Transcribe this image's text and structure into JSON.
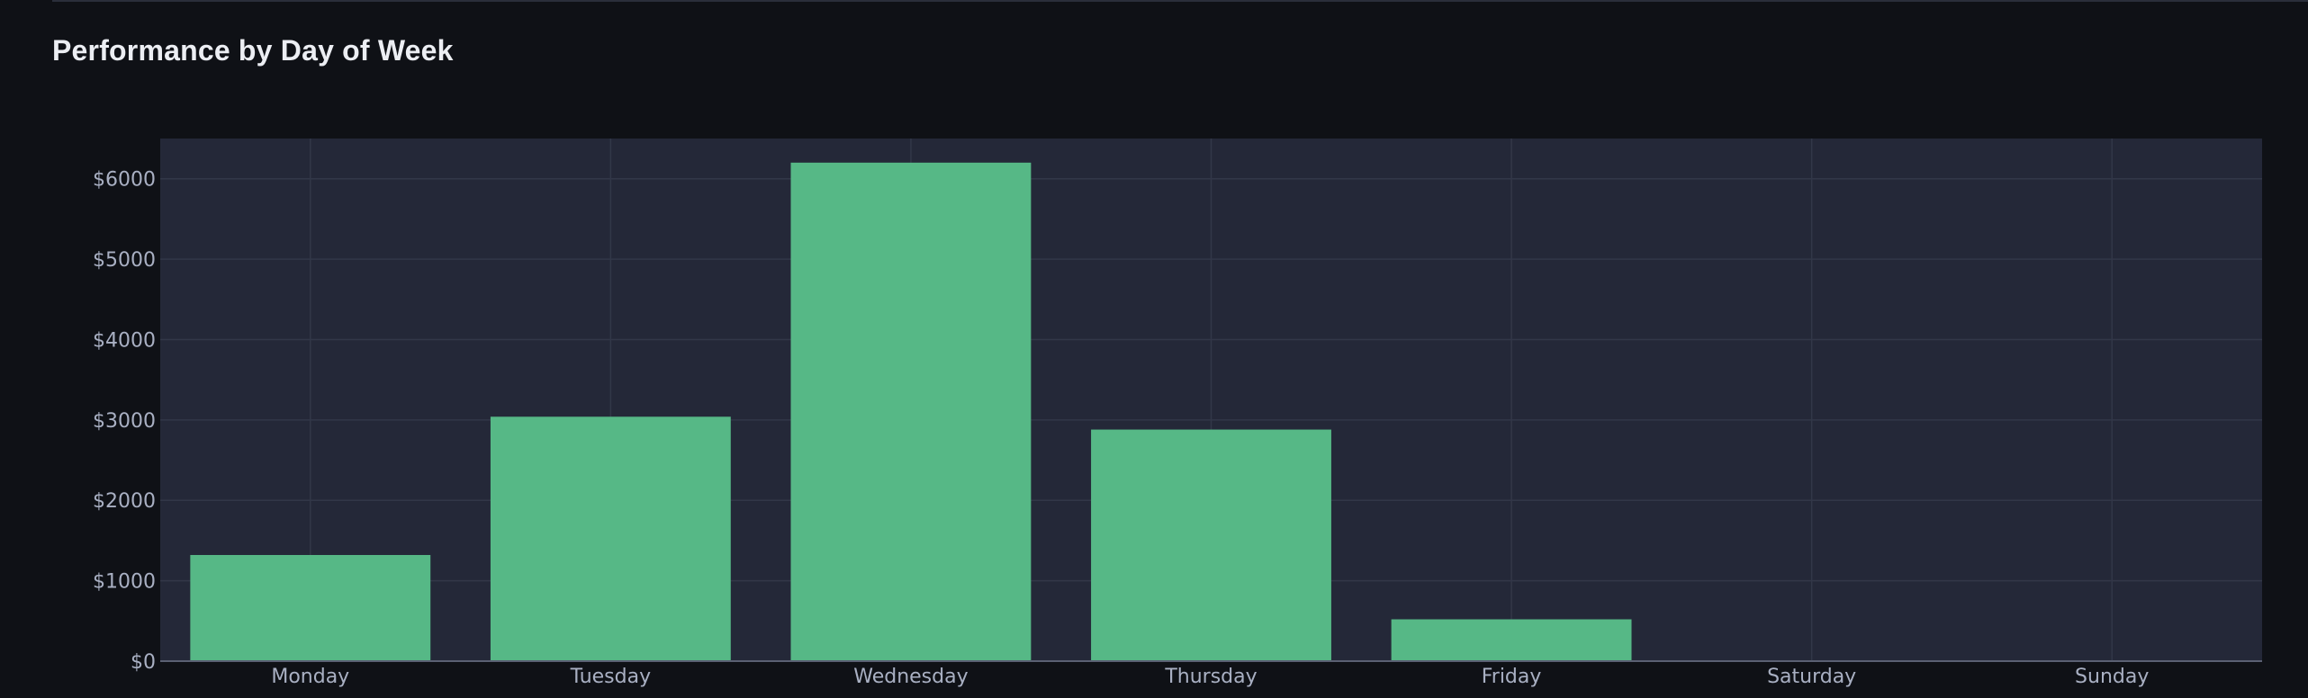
{
  "chart_data": {
    "type": "bar",
    "title": "Performance by Day of Week",
    "categories": [
      "Monday",
      "Tuesday",
      "Wednesday",
      "Thursday",
      "Friday",
      "Saturday",
      "Sunday"
    ],
    "values": [
      1320,
      3040,
      6200,
      2880,
      520,
      0,
      0
    ],
    "xlabel": "",
    "ylabel": "",
    "ylim": [
      0,
      6500
    ],
    "yticks": [
      0,
      1000,
      2000,
      3000,
      4000,
      5000,
      6000
    ],
    "ytick_labels": [
      "$0",
      "$1000",
      "$2000",
      "$3000",
      "$4000",
      "$5000",
      "$6000"
    ],
    "grid": true,
    "legend": "none"
  },
  "colors": {
    "bar": "#56b886",
    "plot_background": "#242838",
    "grid": "#323748",
    "page_background": "#0f1116"
  }
}
